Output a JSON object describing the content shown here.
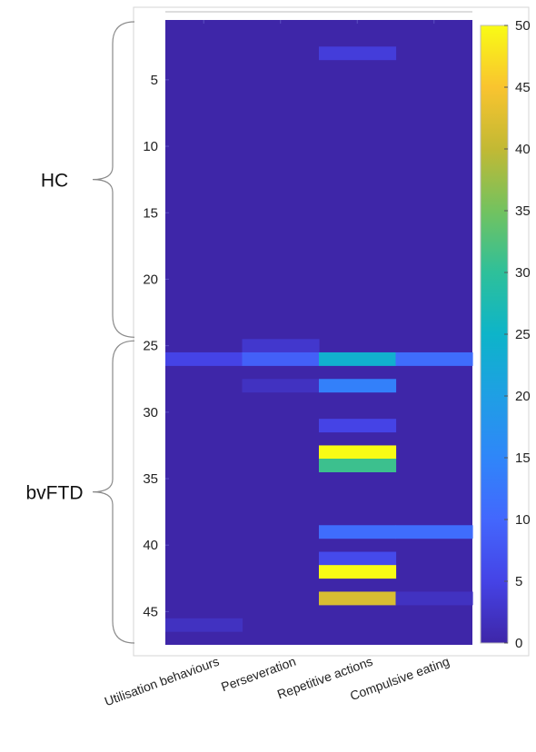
{
  "chart_data": {
    "type": "heatmap",
    "x_categories": [
      "Utilisation behaviours",
      "Perseveration",
      "Repetitive actions",
      "Compulsive eating"
    ],
    "y_ticks": [
      5,
      10,
      15,
      20,
      25,
      30,
      35,
      40,
      45
    ],
    "y_range": [
      1,
      47
    ],
    "groups": [
      {
        "label": "HC",
        "rows": [
          1,
          24
        ]
      },
      {
        "label": "bvFTD",
        "rows": [
          25,
          47
        ]
      }
    ],
    "colorbar": {
      "min": 0,
      "max": 50,
      "ticks": [
        0,
        5,
        10,
        15,
        20,
        25,
        30,
        35,
        40,
        45,
        50
      ],
      "colormap": "parula"
    },
    "background_value": 0,
    "cells": [
      {
        "row": 3,
        "col": 3,
        "value": 4
      },
      {
        "row": 25,
        "col": 2,
        "value": 3
      },
      {
        "row": 26,
        "col": 1,
        "value": 5
      },
      {
        "row": 26,
        "col": 2,
        "value": 9
      },
      {
        "row": 26,
        "col": 3,
        "value": 24
      },
      {
        "row": 26,
        "col": 4,
        "value": 11
      },
      {
        "row": 28,
        "col": 2,
        "value": 2
      },
      {
        "row": 28,
        "col": 3,
        "value": 14
      },
      {
        "row": 31,
        "col": 3,
        "value": 5
      },
      {
        "row": 33,
        "col": 3,
        "value": 50
      },
      {
        "row": 34,
        "col": 3,
        "value": 31
      },
      {
        "row": 39,
        "col": 3,
        "value": 11
      },
      {
        "row": 39,
        "col": 4,
        "value": 11
      },
      {
        "row": 41,
        "col": 3,
        "value": 6
      },
      {
        "row": 42,
        "col": 3,
        "value": 50
      },
      {
        "row": 44,
        "col": 3,
        "value": 42
      },
      {
        "row": 44,
        "col": 4,
        "value": 2
      },
      {
        "row": 46,
        "col": 1,
        "value": 2
      }
    ]
  }
}
